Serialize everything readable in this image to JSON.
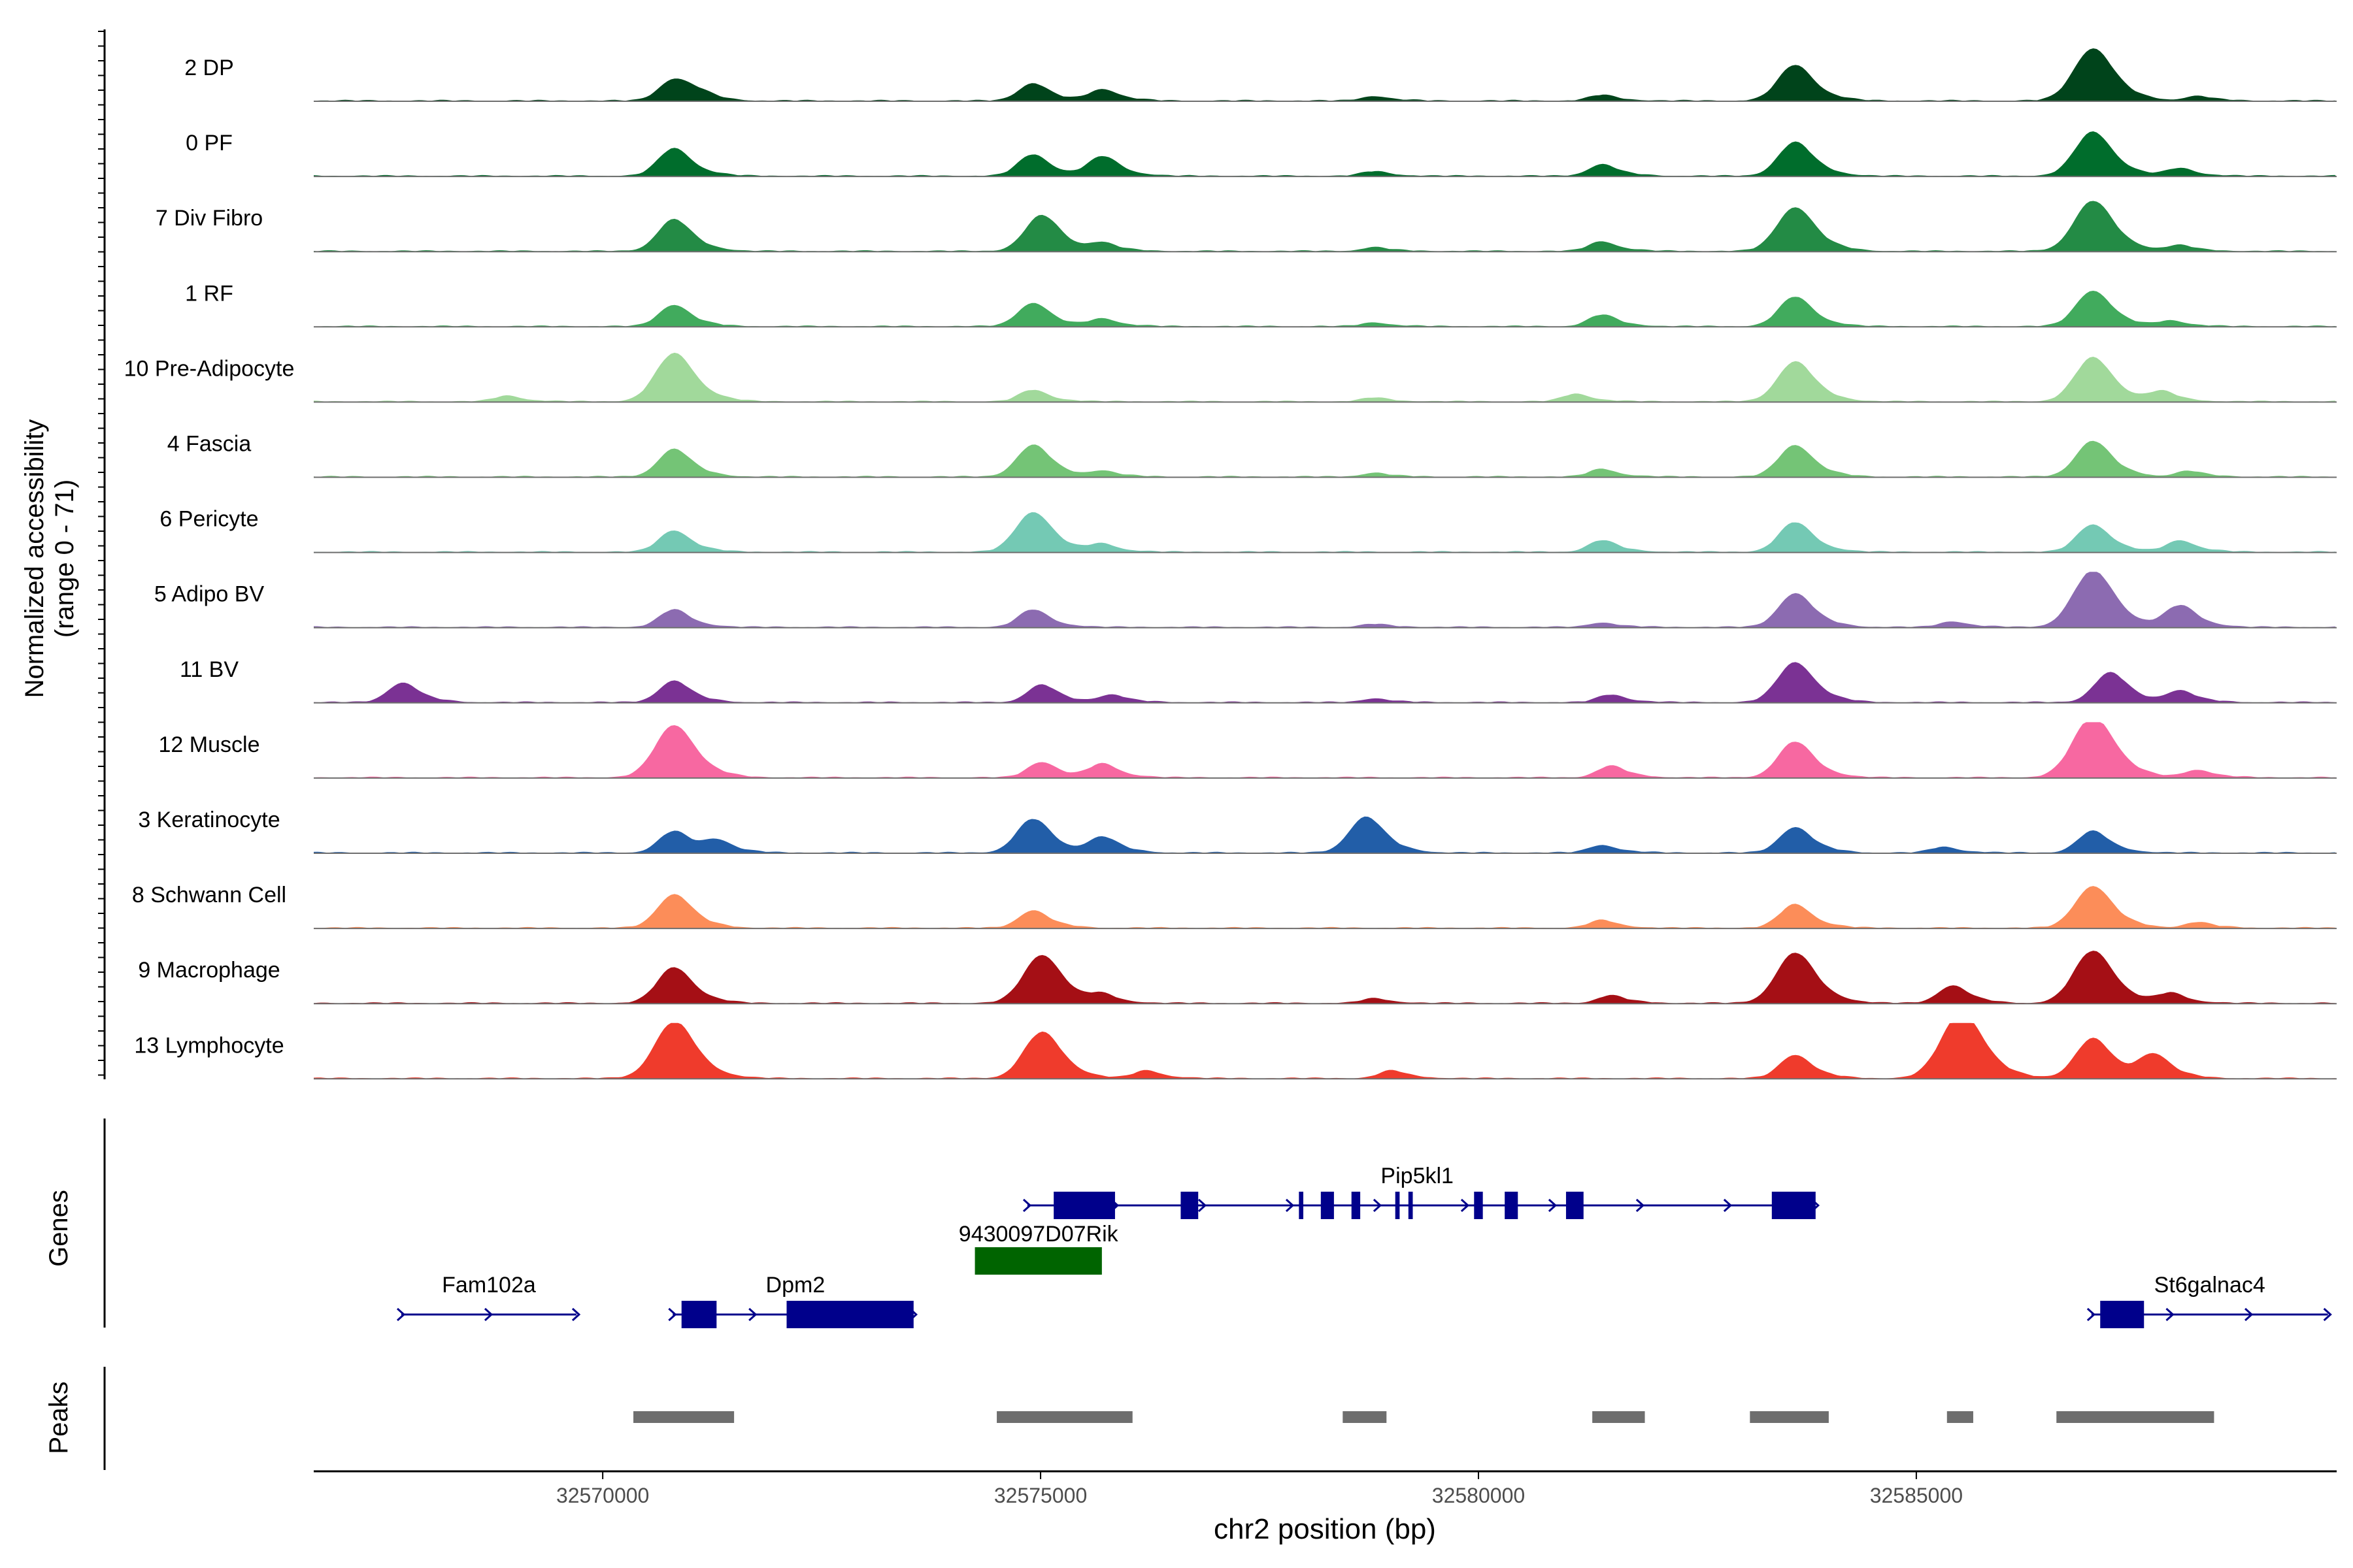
{
  "chart_data": {
    "type": "area",
    "title": "",
    "chromosome": "chr2",
    "xlabel": "chr2 position (bp)",
    "xlim": [
      32566700,
      32589800
    ],
    "xticks": [
      32570000,
      32575000,
      32580000,
      32585000
    ],
    "xtick_labels": [
      "32570000",
      "32575000",
      "32580000",
      "32585000"
    ],
    "coverage": {
      "ylabel_line1": "Normalized accessibility",
      "ylabel_line2": "(range 0 - 71)",
      "ylim": [
        0,
        71
      ],
      "tracks": [
        {
          "name": "2 DP",
          "color": "#00441b",
          "peaks": [
            [
              32570800,
              0.55
            ],
            [
              32571100,
              0.15
            ],
            [
              32574900,
              0.45
            ],
            [
              32575700,
              0.3
            ],
            [
              32578800,
              0.12
            ],
            [
              32581400,
              0.15
            ],
            [
              32583600,
              0.9
            ],
            [
              32587000,
              1.3
            ],
            [
              32588200,
              0.12
            ]
          ]
        },
        {
          "name": "0 PF",
          "color": "#006d2c",
          "peaks": [
            [
              32570800,
              0.7
            ],
            [
              32574900,
              0.55
            ],
            [
              32575700,
              0.5
            ],
            [
              32578800,
              0.12
            ],
            [
              32581400,
              0.3
            ],
            [
              32583600,
              0.85
            ],
            [
              32587000,
              1.1
            ],
            [
              32588000,
              0.2
            ]
          ]
        },
        {
          "name": "7 Div Fibro",
          "color": "#238b45",
          "peaks": [
            [
              32570800,
              0.8
            ],
            [
              32575000,
              0.9
            ],
            [
              32575700,
              0.2
            ],
            [
              32578800,
              0.1
            ],
            [
              32581400,
              0.25
            ],
            [
              32583600,
              1.1
            ],
            [
              32587000,
              1.25
            ],
            [
              32588000,
              0.15
            ]
          ]
        },
        {
          "name": "1 RF",
          "color": "#41ab5d",
          "peaks": [
            [
              32570800,
              0.55
            ],
            [
              32574900,
              0.6
            ],
            [
              32575700,
              0.2
            ],
            [
              32578800,
              0.1
            ],
            [
              32581400,
              0.3
            ],
            [
              32583600,
              0.75
            ],
            [
              32587000,
              0.9
            ],
            [
              32587900,
              0.15
            ]
          ]
        },
        {
          "name": "10 Pre-Adipocyte",
          "color": "#a1d99b",
          "peaks": [
            [
              32568900,
              0.15
            ],
            [
              32570800,
              1.2
            ],
            [
              32574900,
              0.3
            ],
            [
              32578800,
              0.1
            ],
            [
              32581100,
              0.2
            ],
            [
              32583600,
              1.0
            ],
            [
              32587000,
              1.1
            ],
            [
              32587800,
              0.25
            ]
          ]
        },
        {
          "name": "4 Fascia",
          "color": "#74c476",
          "peaks": [
            [
              32570800,
              0.7
            ],
            [
              32574900,
              0.8
            ],
            [
              32575700,
              0.15
            ],
            [
              32578800,
              0.1
            ],
            [
              32581400,
              0.2
            ],
            [
              32583600,
              0.8
            ],
            [
              32587000,
              0.9
            ],
            [
              32588100,
              0.15
            ]
          ]
        },
        {
          "name": "6 Pericyte",
          "color": "#74c9b4",
          "peaks": [
            [
              32570800,
              0.55
            ],
            [
              32574900,
              1.0
            ],
            [
              32575700,
              0.2
            ],
            [
              32581400,
              0.3
            ],
            [
              32583600,
              0.75
            ],
            [
              32587000,
              0.7
            ],
            [
              32588000,
              0.3
            ]
          ]
        },
        {
          "name": "5 Adipo BV",
          "color": "#8c6bb1",
          "peaks": [
            [
              32570800,
              0.45
            ],
            [
              32574900,
              0.45
            ],
            [
              32578800,
              0.08
            ],
            [
              32581400,
              0.12
            ],
            [
              32583600,
              0.85
            ],
            [
              32585400,
              0.15
            ],
            [
              32587000,
              1.4
            ],
            [
              32588000,
              0.55
            ]
          ]
        },
        {
          "name": "11 BV",
          "color": "#7b3294",
          "peaks": [
            [
              32567700,
              0.5
            ],
            [
              32570800,
              0.55
            ],
            [
              32575000,
              0.45
            ],
            [
              32575800,
              0.2
            ],
            [
              32578800,
              0.1
            ],
            [
              32581500,
              0.2
            ],
            [
              32583600,
              1.0
            ],
            [
              32587200,
              0.75
            ],
            [
              32588000,
              0.3
            ]
          ]
        },
        {
          "name": "12 Muscle",
          "color": "#f768a1",
          "peaks": [
            [
              32570800,
              1.3
            ],
            [
              32575000,
              0.4
            ],
            [
              32575700,
              0.35
            ],
            [
              32581500,
              0.3
            ],
            [
              32583600,
              0.9
            ],
            [
              32587000,
              1.5
            ],
            [
              32588200,
              0.2
            ]
          ]
        },
        {
          "name": "3 Keratinocyte",
          "color": "#225ea8",
          "peaks": [
            [
              32570800,
              0.55
            ],
            [
              32571300,
              0.3
            ],
            [
              32574900,
              0.85
            ],
            [
              32575700,
              0.4
            ],
            [
              32578700,
              0.9
            ],
            [
              32581400,
              0.2
            ],
            [
              32583600,
              0.65
            ],
            [
              32585300,
              0.15
            ],
            [
              32587000,
              0.55
            ]
          ]
        },
        {
          "name": "8 Schwann Cell",
          "color": "#fc8d59",
          "peaks": [
            [
              32570800,
              0.85
            ],
            [
              32574900,
              0.45
            ],
            [
              32581400,
              0.2
            ],
            [
              32583600,
              0.6
            ],
            [
              32587000,
              1.05
            ],
            [
              32588200,
              0.15
            ]
          ]
        },
        {
          "name": "9 Macrophage",
          "color": "#a50f15",
          "peaks": [
            [
              32570800,
              0.9
            ],
            [
              32575000,
              1.2
            ],
            [
              32575700,
              0.2
            ],
            [
              32578800,
              0.12
            ],
            [
              32581500,
              0.2
            ],
            [
              32583600,
              1.25
            ],
            [
              32585400,
              0.45
            ],
            [
              32587000,
              1.3
            ],
            [
              32587900,
              0.25
            ]
          ]
        },
        {
          "name": "13 Lymphocyte",
          "color": "#ef3b2c",
          "peaks": [
            [
              32570800,
              1.4
            ],
            [
              32575000,
              1.15
            ],
            [
              32576200,
              0.2
            ],
            [
              32579000,
              0.2
            ],
            [
              32583600,
              0.6
            ],
            [
              32585500,
              1.6
            ],
            [
              32587000,
              1.0
            ],
            [
              32587700,
              0.6
            ]
          ]
        }
      ]
    },
    "genes": {
      "ylabel": "Genes",
      "items": [
        {
          "name": "Fam102a",
          "start": 32567700,
          "end": 32569700,
          "row": 2,
          "color": "#00008b",
          "exons": []
        },
        {
          "name": "Dpm2",
          "start": 32570800,
          "end": 32573550,
          "row": 2,
          "color": "#00008b",
          "exons": [
            [
              32570900,
              32571300
            ],
            [
              32572100,
              32573550
            ]
          ]
        },
        {
          "name": "9430097D07Rik",
          "start": 32574250,
          "end": 32575700,
          "row": 1,
          "color": "#006400",
          "exons": [
            [
              32574250,
              32575700
            ]
          ]
        },
        {
          "name": "Pip5kl1",
          "start": 32574850,
          "end": 32583850,
          "row": 0,
          "color": "#00008b",
          "exons": [
            [
              32575150,
              32575850
            ],
            [
              32576600,
              32576800
            ],
            [
              32577950,
              32578000
            ],
            [
              32578200,
              32578350
            ],
            [
              32578550,
              32578650
            ],
            [
              32579050,
              32579100
            ],
            [
              32579200,
              32579250
            ],
            [
              32579950,
              32580050
            ],
            [
              32580300,
              32580450
            ],
            [
              32581000,
              32581200
            ],
            [
              32583350,
              32583850
            ]
          ]
        },
        {
          "name": "St6galnac4",
          "start": 32587000,
          "end": 32589700,
          "row": 2,
          "color": "#00008b",
          "exons": [
            [
              32587100,
              32587600
            ]
          ]
        }
      ]
    },
    "peaks": {
      "ylabel": "Peaks",
      "color": "#6e6e6e",
      "regions": [
        [
          32570350,
          32571500
        ],
        [
          32574500,
          32576050
        ],
        [
          32578450,
          32578950
        ],
        [
          32581300,
          32581900
        ],
        [
          32583100,
          32584000
        ],
        [
          32585350,
          32585650
        ],
        [
          32586600,
          32588400
        ]
      ]
    }
  }
}
